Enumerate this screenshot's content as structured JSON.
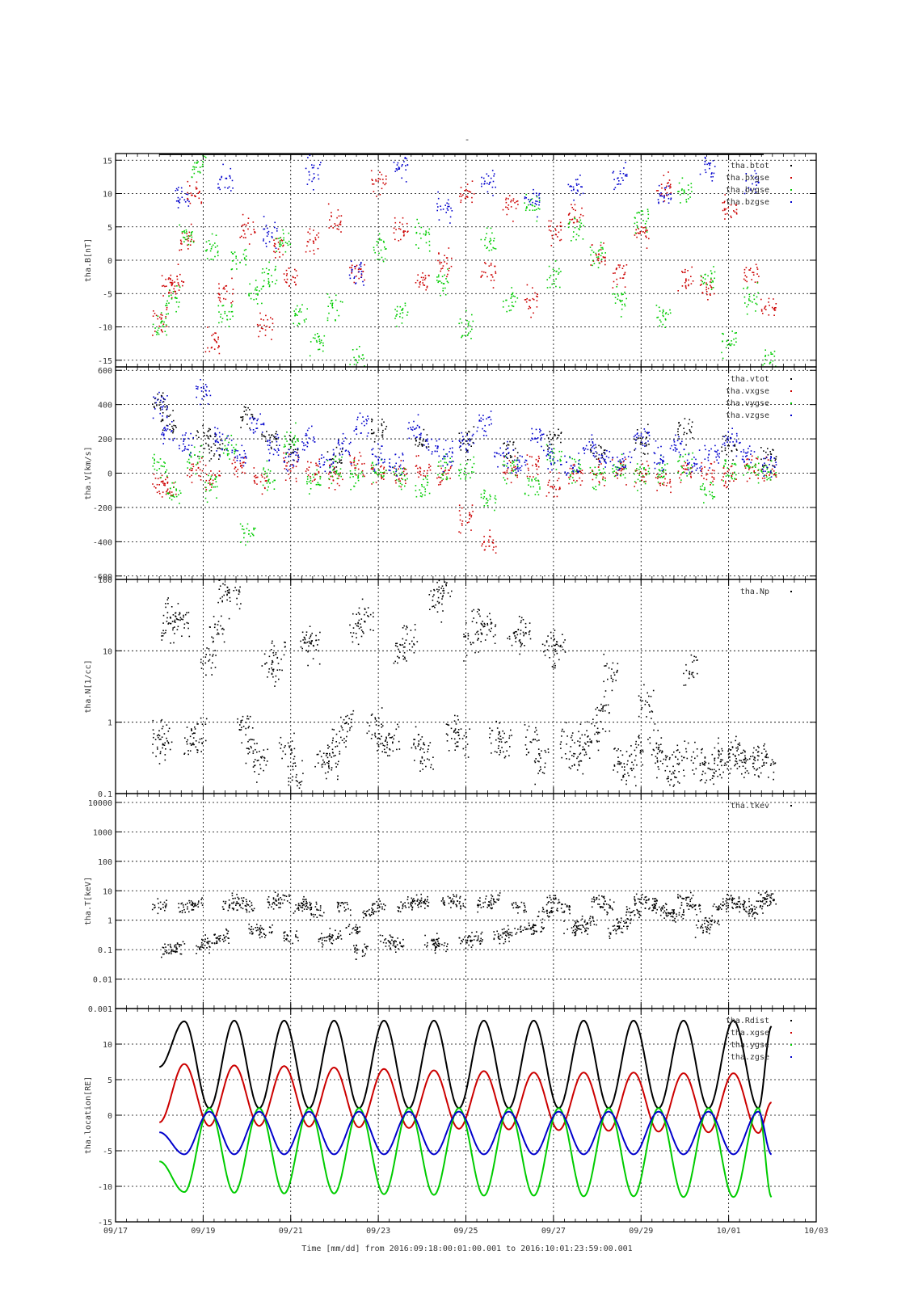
{
  "figure": {
    "title": "-",
    "xlabel": "Time [mm/dd]  from 2016:09:18:00:01:00.001  to  2016:10:01:23:59:00.001"
  },
  "colors": {
    "black": "#000000",
    "red": "#cc0000",
    "green": "#00cc00",
    "blue": "#0000cc"
  },
  "chart_data": [
    {
      "type": "scatter",
      "ylabel": "tha.B[nT]",
      "xlim": [
        0,
        16
      ],
      "ylim": [
        -16,
        16
      ],
      "yscale": "linear",
      "yticks": [
        -15,
        -10,
        -5,
        0,
        5,
        10,
        15
      ],
      "ytick_labels": [
        "-15",
        "-10",
        "-5",
        "0",
        "5",
        "10",
        "15"
      ],
      "legend_position": "top-right",
      "series": [
        {
          "name": "tha.btot",
          "color": "black",
          "x": [
            1,
            14.8
          ],
          "y": [
            15.9,
            15.9
          ]
        },
        {
          "name": "tha.bxgse",
          "color": "red",
          "x": [
            1,
            1.2,
            1.4,
            1.6,
            1.8,
            2.2,
            2.5,
            3,
            3.4,
            3.7,
            4,
            4.5,
            5,
            5.5,
            6,
            6.5,
            7,
            7.5,
            8,
            8.5,
            9,
            9.5,
            10,
            10.5,
            11,
            11.5,
            12,
            12.5,
            13,
            13.5,
            14,
            14.5,
            14.9
          ],
          "y": [
            -9,
            -4,
            -3,
            3,
            10,
            -12,
            -5,
            5,
            -10,
            2,
            -3,
            3,
            6,
            -2,
            12,
            5,
            -3,
            0,
            10,
            -2,
            8,
            -6,
            4,
            7,
            1,
            -2,
            4,
            11,
            -3,
            -4,
            8,
            -2,
            -7
          ]
        },
        {
          "name": "tha.bygse",
          "color": "green",
          "x": [
            1,
            1.3,
            1.6,
            1.9,
            2.2,
            2.5,
            2.8,
            3.2,
            3.5,
            3.8,
            4.2,
            4.6,
            5,
            5.5,
            6,
            6.5,
            7,
            7.5,
            8,
            8.5,
            9,
            9.5,
            10,
            10.5,
            11,
            11.5,
            12,
            12.5,
            13,
            13.5,
            14,
            14.5,
            14.9
          ],
          "y": [
            -10,
            -6,
            4,
            14,
            2,
            -8,
            0,
            -5,
            -2,
            3,
            -8,
            -12,
            -7,
            -15,
            2,
            -8,
            4,
            -3,
            -10,
            3,
            -6,
            8,
            -2,
            5,
            1,
            -6,
            6,
            -8,
            10,
            -3,
            -12,
            -6,
            -15
          ]
        },
        {
          "name": "tha.bzgse",
          "color": "blue",
          "x": [
            1.5,
            2.5,
            3.5,
            4.5,
            5.5,
            6.5,
            7.5,
            8.5,
            9.5,
            10.5,
            11.5,
            12.5,
            13.5,
            14.5
          ],
          "y": [
            10,
            12,
            4,
            13,
            -2,
            14,
            8,
            12,
            9,
            11,
            13,
            10,
            14,
            12
          ]
        }
      ]
    },
    {
      "type": "scatter",
      "ylabel": "tha.V[km/s]",
      "xlim": [
        0,
        16
      ],
      "ylim": [
        -620,
        620
      ],
      "yscale": "linear",
      "yticks": [
        -600,
        -400,
        -200,
        0,
        200,
        400,
        600
      ],
      "ytick_labels": [
        "-600",
        "-400",
        "-200",
        "0",
        "200",
        "400",
        "600"
      ],
      "legend_position": "top-right",
      "series": [
        {
          "name": "tha.vtot",
          "color": "black",
          "x": [
            1,
            1.2,
            2,
            2.3,
            3,
            3.5,
            4,
            5,
            6,
            7,
            8,
            9,
            10,
            11,
            12,
            13,
            14,
            14.9
          ],
          "y": [
            420,
            300,
            200,
            150,
            350,
            200,
            150,
            100,
            250,
            200,
            180,
            150,
            200,
            120,
            200,
            250,
            150,
            100
          ]
        },
        {
          "name": "tha.vxgse",
          "color": "red",
          "x": [
            1,
            1.2,
            1.8,
            2.2,
            2.8,
            3.3,
            4,
            4.5,
            5,
            5.5,
            6,
            6.5,
            7,
            7.5,
            8,
            8.5,
            9,
            9.5,
            10,
            10.5,
            11,
            11.5,
            12,
            12.5,
            13,
            13.5,
            14,
            14.5,
            14.9
          ],
          "y": [
            -50,
            -80,
            20,
            -50,
            40,
            -30,
            30,
            20,
            -20,
            60,
            10,
            -10,
            20,
            0,
            -250,
            -400,
            20,
            50,
            -80,
            10,
            0,
            30,
            10,
            -40,
            20,
            10,
            -20,
            30,
            10
          ]
        },
        {
          "name": "tha.vygse",
          "color": "green",
          "x": [
            1,
            1.3,
            1.8,
            2.2,
            2.6,
            3,
            3.5,
            4,
            4.5,
            5,
            5.5,
            6,
            6.5,
            7,
            7.5,
            8,
            8.5,
            9,
            9.5,
            10,
            10.5,
            11,
            11.5,
            12,
            12.5,
            13,
            13.5,
            14,
            14.5,
            14.9
          ],
          "y": [
            50,
            -100,
            80,
            -80,
            150,
            -350,
            -20,
            200,
            -40,
            30,
            -20,
            10,
            -30,
            -80,
            30,
            10,
            -150,
            40,
            -60,
            100,
            20,
            -10,
            40,
            0,
            20,
            60,
            -100,
            30,
            20,
            0
          ]
        },
        {
          "name": "tha.vzgse",
          "color": "blue",
          "x": [
            1,
            1.2,
            1.6,
            2,
            2.4,
            2.8,
            3.2,
            3.6,
            4,
            4.4,
            4.8,
            5.2,
            5.6,
            6,
            6.4,
            6.8,
            7.2,
            7.6,
            8,
            8.4,
            8.8,
            9.2,
            9.6,
            10,
            10.4,
            10.8,
            11.2,
            11.6,
            12,
            12.4,
            12.8,
            13.2,
            13.6,
            14,
            14.4,
            14.9
          ],
          "y": [
            400,
            250,
            180,
            500,
            200,
            100,
            300,
            150,
            100,
            200,
            50,
            150,
            300,
            100,
            50,
            250,
            150,
            100,
            200,
            300,
            100,
            50,
            200,
            100,
            50,
            150,
            100,
            50,
            200,
            100,
            150,
            50,
            100,
            200,
            100,
            50
          ]
        }
      ]
    },
    {
      "type": "scatter",
      "ylabel": "tha.N[1/cc]",
      "xlim": [
        0,
        16
      ],
      "ylim": [
        0.1,
        100
      ],
      "yscale": "log",
      "yticks": [
        0.1,
        1,
        10,
        100
      ],
      "ytick_labels": [
        "0.1",
        "1",
        "10",
        "100"
      ],
      "legend_position": "top-right",
      "series": [
        {
          "name": "tha.Np",
          "color": "black",
          "x": [
            1,
            1.1,
            1.2,
            1.3,
            1.5,
            1.7,
            1.9,
            2.1,
            2.3,
            2.5,
            2.7,
            2.9,
            3.1,
            3.3,
            3.5,
            3.7,
            3.9,
            4.1,
            4.3,
            4.5,
            4.7,
            4.9,
            5.1,
            5.3,
            5.5,
            5.7,
            5.9,
            6.1,
            6.3,
            6.5,
            6.7,
            6.9,
            7.1,
            7.3,
            7.5,
            7.7,
            7.9,
            8.1,
            8.3,
            8.5,
            8.7,
            8.9,
            9.1,
            9.3,
            9.5,
            9.7,
            9.9,
            10.1,
            10.3,
            10.5,
            10.7,
            10.9,
            11.1,
            11.3,
            11.5,
            11.7,
            11.9,
            12.1,
            12.3,
            12.5,
            12.7,
            12.9,
            13.1,
            13.3,
            13.5,
            13.7,
            13.9,
            14.1,
            14.3,
            14.5,
            14.7,
            14.9
          ],
          "y": [
            0.6,
            0.5,
            20,
            30,
            30,
            0.5,
            0.8,
            8,
            20,
            80,
            60,
            0.8,
            0.5,
            0.3,
            6,
            8,
            0.4,
            0.2,
            15,
            12,
            0.3,
            0.3,
            0.6,
            1,
            20,
            30,
            0.8,
            0.5,
            0.6,
            10,
            15,
            0.5,
            0.3,
            50,
            70,
            0.8,
            0.6,
            15,
            25,
            20,
            0.6,
            0.5,
            15,
            20,
            0.6,
            0.3,
            10,
            12,
            0.5,
            0.3,
            0.5,
            0.8,
            1.5,
            5,
            0.3,
            0.2,
            0.4,
            2,
            0.5,
            0.3,
            0.2,
            0.3,
            5,
            0.3,
            0.2,
            0.3,
            0.3,
            0.4,
            0.3,
            0.3,
            0.3,
            0.3
          ]
        }
      ]
    },
    {
      "type": "scatter",
      "ylabel": "tha.T[keV]",
      "xlim": [
        0,
        16
      ],
      "ylim": [
        0.001,
        20000
      ],
      "yscale": "log",
      "yticks": [
        0.001,
        0.01,
        0.1,
        1,
        10,
        100,
        1000,
        10000
      ],
      "ytick_labels": [
        "0.001",
        "0.01",
        "0.1",
        "1",
        "10",
        "100",
        "1000",
        "10000"
      ],
      "legend_position": "top-right",
      "series": [
        {
          "name": "tha.tkev",
          "color": "black",
          "x": [
            1,
            1.2,
            1.4,
            1.6,
            1.8,
            2,
            2.2,
            2.4,
            2.6,
            2.8,
            3,
            3.2,
            3.4,
            3.6,
            3.8,
            4,
            4.2,
            4.4,
            4.6,
            4.8,
            5,
            5.2,
            5.4,
            5.6,
            5.8,
            6,
            6.2,
            6.4,
            6.6,
            6.8,
            7,
            7.2,
            7.4,
            7.6,
            7.8,
            8,
            8.2,
            8.4,
            8.6,
            8.8,
            9,
            9.2,
            9.4,
            9.6,
            9.8,
            10,
            10.2,
            10.4,
            10.6,
            10.8,
            11,
            11.2,
            11.4,
            11.6,
            11.8,
            12,
            12.2,
            12.4,
            12.6,
            12.8,
            13,
            13.2,
            13.4,
            13.6,
            13.8,
            14,
            14.2,
            14.4,
            14.6,
            14.8,
            14.9
          ],
          "y": [
            3,
            0.1,
            0.12,
            3,
            4,
            0.15,
            0.2,
            0.3,
            3,
            5,
            3,
            0.5,
            0.4,
            4,
            5,
            0.3,
            3,
            4,
            2,
            0.2,
            0.3,
            3,
            0.5,
            0.1,
            2,
            3,
            0.2,
            0.15,
            3,
            5,
            4,
            0.2,
            0.15,
            5,
            4,
            0.2,
            0.25,
            4,
            5,
            0.3,
            0.4,
            3,
            0.5,
            0.6,
            2,
            5,
            3,
            0.6,
            0.5,
            1,
            5,
            3,
            0.5,
            1,
            2,
            5,
            4,
            3,
            2,
            1.5,
            6,
            3,
            0.5,
            1,
            3,
            5,
            4,
            3,
            2,
            5,
            6
          ]
        }
      ]
    },
    {
      "type": "line",
      "ylabel": "tha.location[RE]",
      "xlim": [
        0,
        16
      ],
      "ylim": [
        -15,
        15
      ],
      "yscale": "linear",
      "yticks": [
        -15,
        -10,
        -5,
        0,
        5,
        10
      ],
      "ytick_labels": [
        "-15",
        "-10",
        "-5",
        "0",
        "5",
        "10"
      ],
      "legend_position": "top-right",
      "orbit": {
        "t0": 1.0,
        "t_end": 14.98,
        "period_days": 1.1394,
        "perigee_phase": 0.1
      },
      "series": [
        {
          "name": "tha.Rdist",
          "color": "black",
          "x": [
            1,
            1.57,
            2.14,
            2.71,
            3.28,
            3.85,
            4.42,
            4.99,
            5.56,
            6.13,
            6.7,
            7.27,
            7.84,
            8.41,
            8.98,
            9.55,
            10.12,
            10.69,
            11.26,
            11.83,
            12.4,
            12.97,
            13.54,
            14.11,
            14.68,
            14.98
          ],
          "y": [
            6.8,
            13.2,
            1.0,
            13.3,
            1.0,
            13.3,
            1.0,
            13.3,
            1.0,
            13.3,
            1.0,
            13.3,
            1.0,
            13.3,
            1.0,
            13.3,
            1.0,
            13.3,
            1.0,
            13.3,
            1.0,
            13.3,
            1.0,
            13.3,
            1.0,
            12.5
          ]
        },
        {
          "name": "tha.xgse",
          "color": "red",
          "x": [
            1,
            1.57,
            2.14,
            2.71,
            3.28,
            3.85,
            4.42,
            4.99,
            5.56,
            6.13,
            6.7,
            7.27,
            7.84,
            8.41,
            8.98,
            9.55,
            10.12,
            10.69,
            11.26,
            11.83,
            12.4,
            12.97,
            13.54,
            14.11,
            14.68,
            14.98
          ],
          "y": [
            -1.0,
            7.2,
            -1.5,
            7.0,
            -1.5,
            6.9,
            -1.6,
            6.7,
            -1.7,
            6.5,
            -1.8,
            6.3,
            -1.9,
            6.2,
            -2.0,
            6.0,
            -2.1,
            6.0,
            -2.2,
            6.0,
            -2.3,
            5.9,
            -2.4,
            5.9,
            -2.5,
            1.8
          ]
        },
        {
          "name": "tha.ygse",
          "color": "green",
          "x": [
            1,
            1.57,
            2.14,
            2.71,
            3.28,
            3.85,
            4.42,
            4.99,
            5.56,
            6.13,
            6.7,
            7.27,
            7.84,
            8.41,
            8.98,
            9.55,
            10.12,
            10.69,
            11.26,
            11.83,
            12.4,
            12.97,
            13.54,
            14.11,
            14.68,
            14.98
          ],
          "y": [
            -6.5,
            -10.8,
            1.0,
            -10.9,
            1.0,
            -11.0,
            1.0,
            -11.0,
            1.0,
            -11.1,
            1.0,
            -11.2,
            1.0,
            -11.3,
            1.0,
            -11.3,
            1.0,
            -11.4,
            1.0,
            -11.4,
            1.0,
            -11.5,
            1.0,
            -11.5,
            1.0,
            -11.5
          ]
        },
        {
          "name": "tha.zgse",
          "color": "blue",
          "x": [
            1,
            1.57,
            2.14,
            2.71,
            3.28,
            3.85,
            4.42,
            4.99,
            5.56,
            6.13,
            6.7,
            7.27,
            7.84,
            8.41,
            8.98,
            9.55,
            10.12,
            10.69,
            11.26,
            11.83,
            12.4,
            12.97,
            13.54,
            14.11,
            14.68,
            14.98
          ],
          "y": [
            -2.4,
            -5.5,
            0.5,
            -5.5,
            0.5,
            -5.5,
            0.5,
            -5.5,
            0.5,
            -5.5,
            0.5,
            -5.5,
            0.5,
            -5.5,
            0.5,
            -5.5,
            0.5,
            -5.5,
            0.5,
            -5.5,
            0.5,
            -5.5,
            0.5,
            -5.5,
            0.5,
            -5.5
          ]
        }
      ]
    }
  ],
  "x_axis": {
    "ticks": [
      0,
      2,
      4,
      6,
      8,
      10,
      12,
      14,
      16
    ],
    "tick_labels": [
      "09/17",
      "09/19",
      "09/21",
      "09/23",
      "09/25",
      "09/27",
      "09/29",
      "10/01",
      "10/03"
    ],
    "minor_step": 0.25
  }
}
